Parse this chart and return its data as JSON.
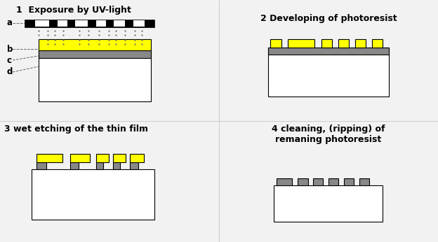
{
  "bg_color": "#f2f2f2",
  "title_fontsize": 9,
  "label_fontsize": 8.5,
  "panel1_title": "1  Exposure by UV-light",
  "panel2_title": "2 Developing of photoresist",
  "panel3_title": "3 wet etching of the thin film",
  "panel4_title": "4 cleaning, (ripping) of\nremaning photoresist",
  "yellow_color": "#ffff00",
  "gray_color": "#888888",
  "white_color": "#ffffff",
  "black_color": "#000000",
  "panel_div_color": "#bbbbbb",
  "uv_dot_color": "#666666",
  "label_line_color": "#666666"
}
